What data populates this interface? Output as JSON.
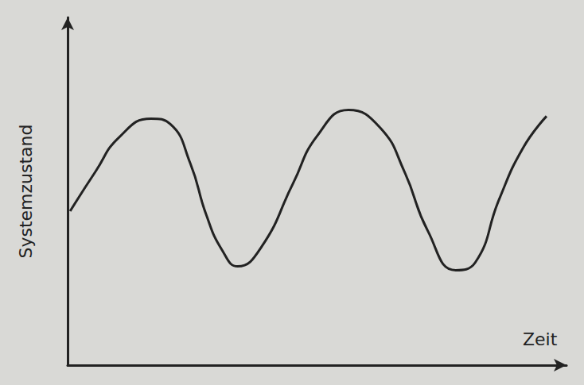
{
  "chart_data": {
    "type": "line",
    "x_label": "Zeit",
    "y_label": "Systemzustand",
    "x": [
      0.05,
      0.56,
      1.03,
      1.67,
      2.06,
      2.46,
      2.78,
      3.1,
      3.41,
      3.89,
      4.52,
      5.0,
      5.63,
      6.27,
      6.75,
      7.22,
      7.78,
      8.17,
      8.65,
      9.13,
      9.6
    ],
    "values": [
      4.43,
      5.57,
      6.55,
      7.09,
      6.93,
      5.8,
      4.32,
      3.3,
      2.84,
      3.41,
      5.23,
      6.59,
      7.34,
      6.82,
      5.57,
      3.86,
      2.73,
      2.95,
      4.77,
      6.25,
      7.16
    ],
    "color": "#222222",
    "xlim": [
      0,
      10
    ],
    "ylim": [
      0,
      10
    ],
    "grid": false,
    "tick_labels": false
  }
}
